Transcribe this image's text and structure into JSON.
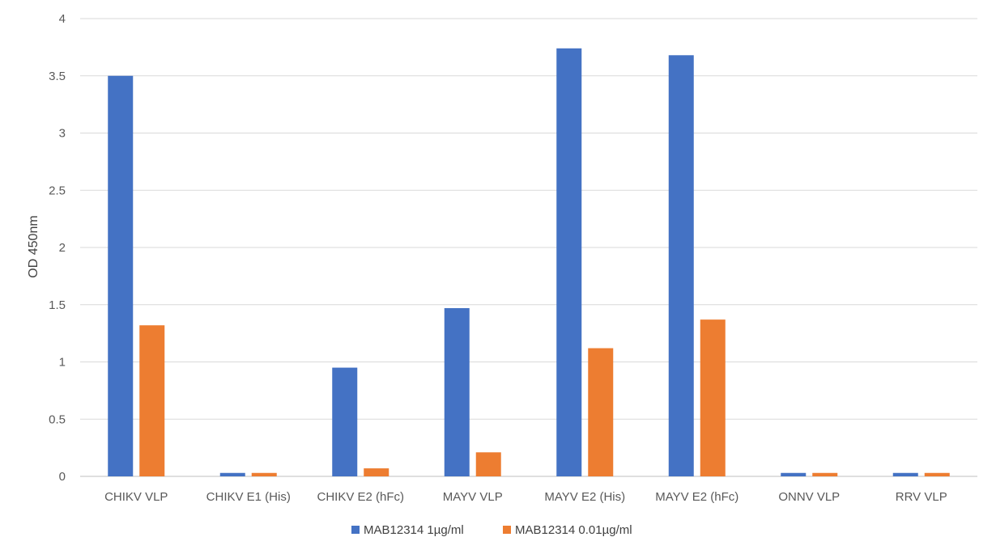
{
  "chart_data": {
    "type": "bar",
    "title": "",
    "xlabel": "",
    "ylabel": "OD 450nm",
    "ylim": [
      0,
      4
    ],
    "yticks": [
      "0",
      "0.5",
      "1",
      "1.5",
      "2",
      "2.5",
      "3",
      "3.5",
      "4"
    ],
    "grid": true,
    "legend_position": "bottom",
    "categories": [
      "CHIKV VLP",
      "CHIKV E1 (His)",
      "CHIKV E2 (hFc)",
      "MAYV VLP",
      "MAYV E2 (His)",
      "MAYV E2 (hFc)",
      "ONNV VLP",
      "RRV VLP"
    ],
    "series": [
      {
        "name": "MAB12314 1µg/ml",
        "color": "#4472C4",
        "values": [
          3.5,
          0.03,
          0.95,
          1.47,
          3.74,
          3.68,
          0.03,
          0.03
        ]
      },
      {
        "name": "MAB12314 0.01µg/ml",
        "color": "#ED7D31",
        "values": [
          1.32,
          0.03,
          0.07,
          0.21,
          1.12,
          1.37,
          0.03,
          0.03
        ]
      }
    ]
  }
}
